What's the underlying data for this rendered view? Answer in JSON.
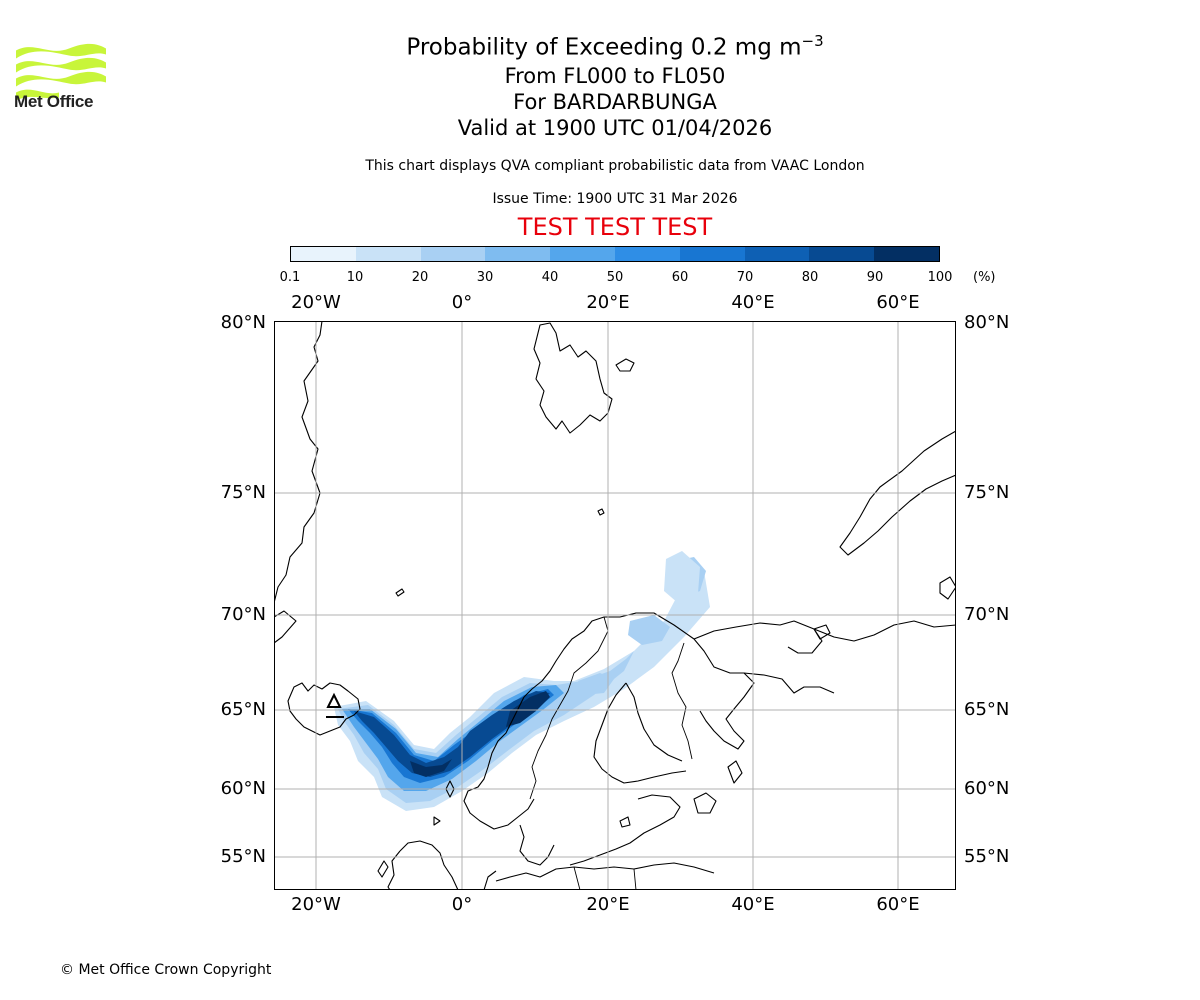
{
  "header": {
    "title_main": "Probability of Exceeding 0.2 mg m",
    "title_sup": "−3",
    "line2": "From FL000 to FL050",
    "line3": "For BARDARBUNGA",
    "line4": "Valid at 1900 UTC 01/04/2026",
    "subtitle": "This chart displays QVA compliant probabilistic data from VAAC London",
    "issue_time": "Issue Time: 1900 UTC 31 Mar 2026",
    "test_banner": "TEST TEST TEST",
    "test_color": "#e8000b"
  },
  "logo": {
    "text": "Met Office",
    "icon": "met-office-wave-logo",
    "color": "#c8f53a"
  },
  "colorbar": {
    "ticks": [
      "0.1",
      "10",
      "20",
      "30",
      "40",
      "50",
      "60",
      "70",
      "80",
      "90",
      "100"
    ],
    "unit": "(%)",
    "colors": [
      "#e8f3fc",
      "#c9e2f7",
      "#a9d0f3",
      "#7fbcf0",
      "#54a6ec",
      "#2f8ee6",
      "#1876d2",
      "#0e60b4",
      "#074a92",
      "#032f63"
    ]
  },
  "map": {
    "projection": "stereographic",
    "lon_labels": [
      "20°W",
      "0°",
      "20°E",
      "40°E",
      "60°E"
    ],
    "lat_labels": [
      "80°N",
      "75°N",
      "70°N",
      "65°N",
      "60°N",
      "55°N"
    ],
    "gridlines": true,
    "source_volcano": "BARDARBUNGA"
  },
  "footer": {
    "copyright": "© Met Office Crown Copyright"
  }
}
